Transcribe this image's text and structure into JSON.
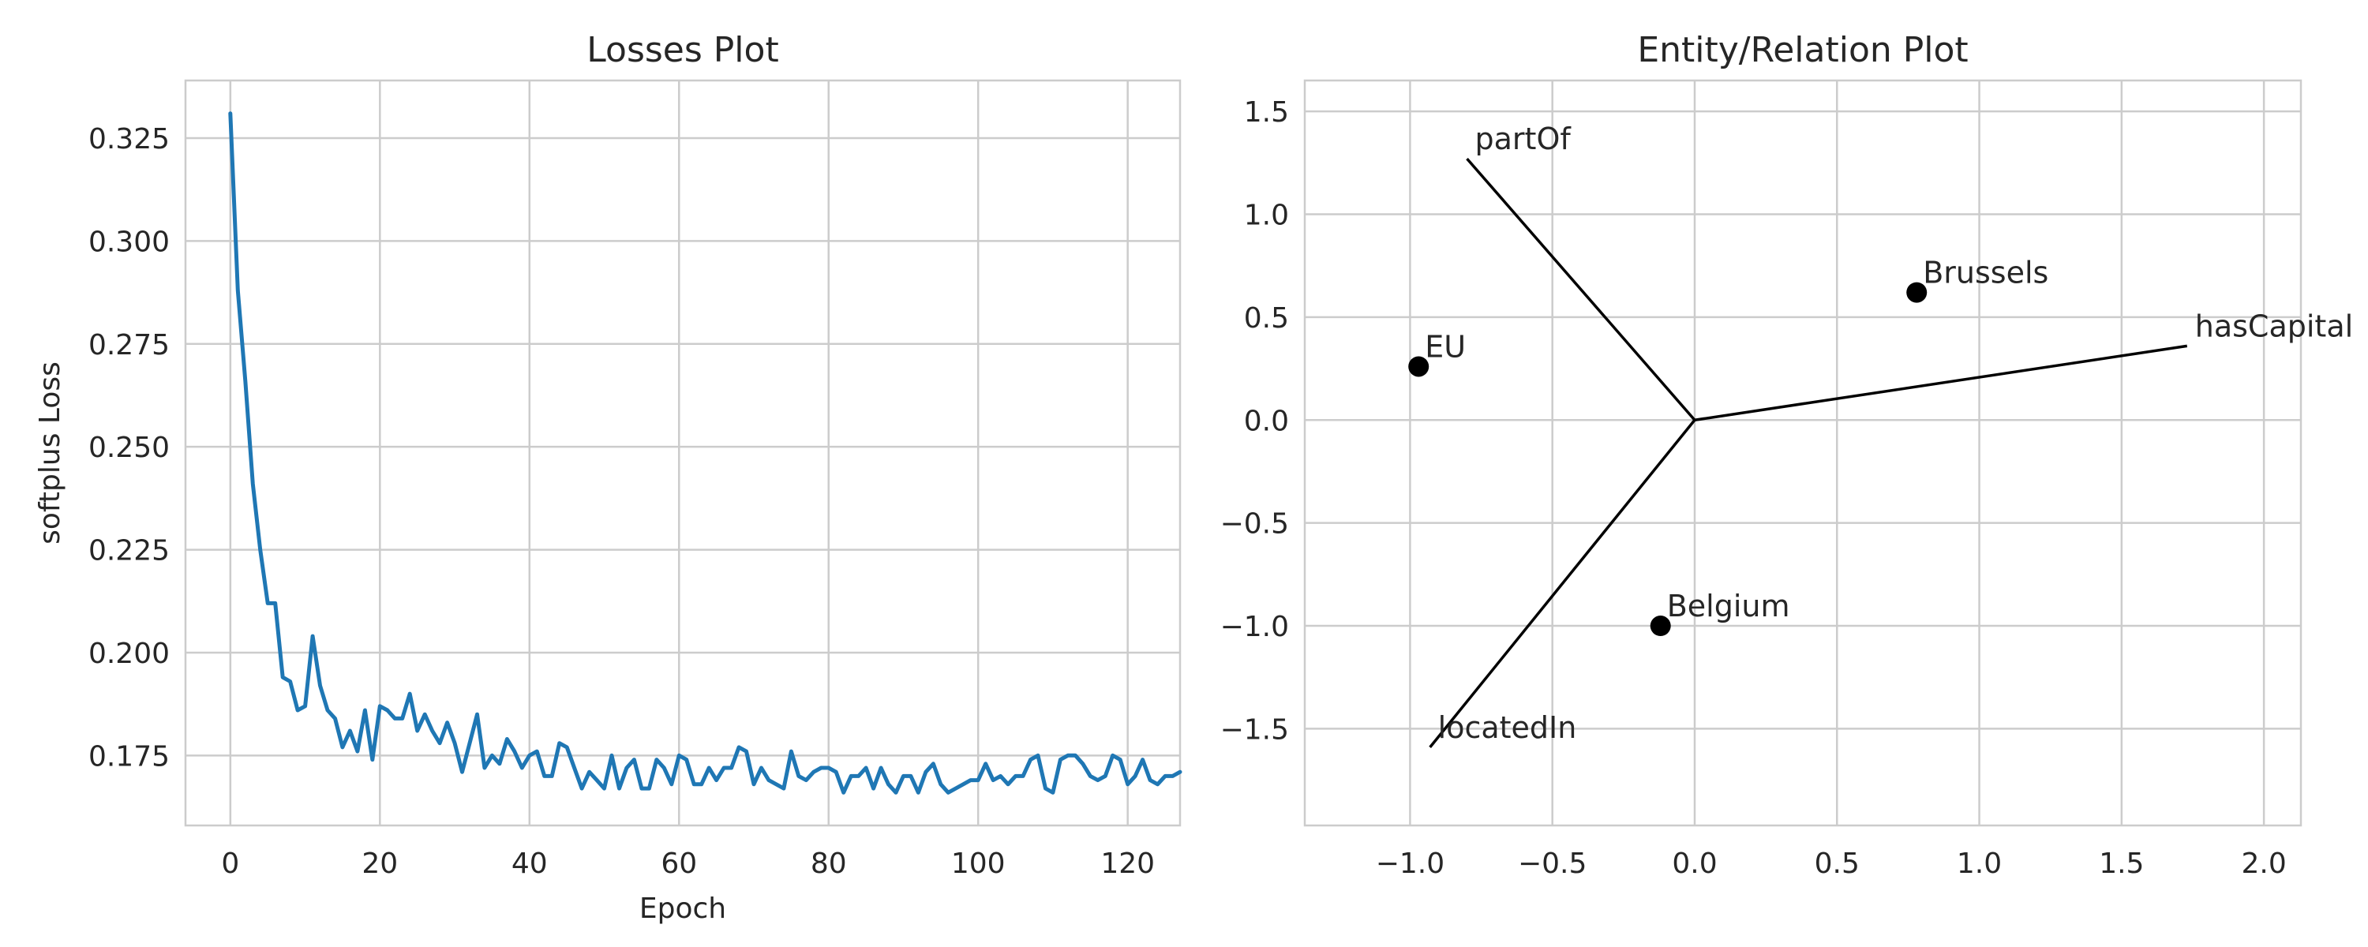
{
  "chart_data": [
    {
      "type": "line",
      "title": "Losses Plot",
      "xlabel": "Epoch",
      "ylabel": "softplus Loss",
      "xlim": [
        -6,
        127
      ],
      "ylim": [
        0.158,
        0.339
      ],
      "xticks": [
        0,
        20,
        40,
        60,
        80,
        100,
        120
      ],
      "xtick_labels": [
        "0",
        "20",
        "40",
        "60",
        "80",
        "100",
        "120"
      ],
      "yticks": [
        0.175,
        0.2,
        0.225,
        0.25,
        0.275,
        0.3,
        0.325
      ],
      "ytick_labels": [
        "0.175",
        "0.200",
        "0.225",
        "0.250",
        "0.275",
        "0.300",
        "0.325"
      ],
      "grid": true,
      "series": [
        {
          "color": "#1f77b4",
          "x_start": 0,
          "x_step": 1,
          "values": [
            0.331,
            0.288,
            0.266,
            0.241,
            0.225,
            0.212,
            0.212,
            0.194,
            0.193,
            0.186,
            0.187,
            0.204,
            0.192,
            0.186,
            0.184,
            0.177,
            0.181,
            0.176,
            0.186,
            0.174,
            0.187,
            0.186,
            0.184,
            0.184,
            0.19,
            0.181,
            0.185,
            0.181,
            0.178,
            0.183,
            0.178,
            0.171,
            0.178,
            0.185,
            0.172,
            0.175,
            0.173,
            0.179,
            0.176,
            0.172,
            0.175,
            0.176,
            0.17,
            0.17,
            0.178,
            0.177,
            0.172,
            0.167,
            0.171,
            0.169,
            0.167,
            0.175,
            0.167,
            0.172,
            0.174,
            0.167,
            0.167,
            0.174,
            0.172,
            0.168,
            0.175,
            0.174,
            0.168,
            0.168,
            0.172,
            0.169,
            0.172,
            0.172,
            0.177,
            0.176,
            0.168,
            0.172,
            0.169,
            0.168,
            0.167,
            0.176,
            0.17,
            0.169,
            0.171,
            0.172,
            0.172,
            0.171,
            0.166,
            0.17,
            0.17,
            0.172,
            0.167,
            0.172,
            0.168,
            0.166,
            0.17,
            0.17,
            0.166,
            0.171,
            0.173,
            0.168,
            0.166,
            0.167,
            0.168,
            0.169,
            0.169,
            0.173,
            0.169,
            0.17,
            0.168,
            0.17,
            0.17,
            0.174,
            0.175,
            0.167,
            0.166,
            0.174,
            0.175,
            0.175,
            0.173,
            0.17,
            0.169,
            0.17,
            0.175,
            0.174,
            0.168,
            0.17,
            0.174,
            0.169,
            0.168,
            0.17,
            0.17,
            0.171
          ]
        }
      ]
    },
    {
      "type": "scatter",
      "title": "Entity/Relation Plot",
      "xlabel": "",
      "ylabel": "",
      "xlim": [
        -1.37,
        2.13
      ],
      "ylim": [
        -1.97,
        1.65
      ],
      "xticks": [
        -1.0,
        -0.5,
        0.0,
        0.5,
        1.0,
        1.5,
        2.0
      ],
      "xtick_labels": [
        "−1.0",
        "−0.5",
        "0.0",
        "0.5",
        "1.0",
        "1.5",
        "2.0"
      ],
      "yticks": [
        -1.5,
        -1.0,
        -0.5,
        0.0,
        0.5,
        1.0,
        1.5
      ],
      "ytick_labels": [
        "−1.5",
        "−1.0",
        "−0.5",
        "0.0",
        "0.5",
        "1.0",
        "1.5"
      ],
      "grid": true,
      "points": [
        {
          "label": "Brussels",
          "x": 0.78,
          "y": 0.62
        },
        {
          "label": "EU",
          "x": -0.97,
          "y": 0.26
        },
        {
          "label": "Belgium",
          "x": -0.12,
          "y": -1.0
        }
      ],
      "relations": [
        {
          "label": "partOf",
          "x": -0.8,
          "y": 1.27
        },
        {
          "label": "hasCapital",
          "x": 1.73,
          "y": 0.36
        },
        {
          "label": "locatedIn",
          "x": -0.93,
          "y": -1.59
        }
      ],
      "point_color": "#000000",
      "line_color": "#000000"
    }
  ]
}
